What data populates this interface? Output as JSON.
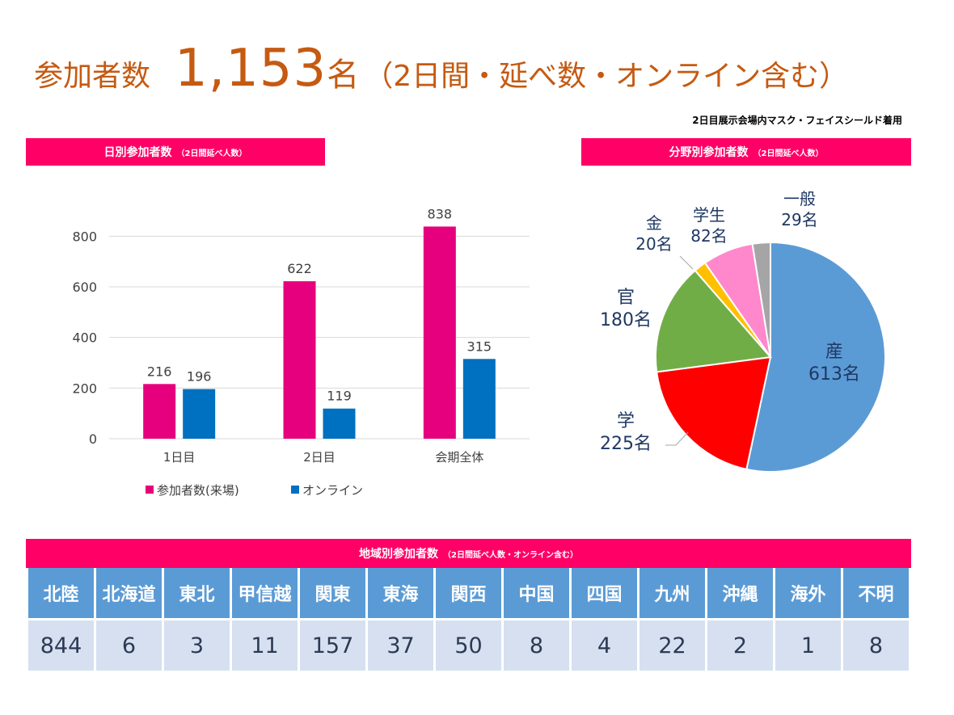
{
  "headline": {
    "label": "参加者数",
    "total": "1,153",
    "unit": "名",
    "note": "（2日間・延べ数・オンライン含む）"
  },
  "mask_note": "2日目展示会場内マスク・フェイスシールド着用",
  "daily_section": {
    "title": "日別参加者数",
    "subtitle": "（2日間延べ人数）"
  },
  "field_section": {
    "title": "分野別参加者数",
    "subtitle": "（2日間延べ人数）"
  },
  "region_section": {
    "title": "地域別参加者数",
    "subtitle": "（2日間延べ人数・オンライン含む）"
  },
  "colors": {
    "accent_band": "#ff0066",
    "headline": "#c55a11",
    "table_header": "#5b9bd5",
    "table_cell": "#d6e0f0"
  },
  "chart_data": [
    {
      "type": "bar",
      "categories": [
        "1日目",
        "2日目",
        "会期全体"
      ],
      "series": [
        {
          "name": "参加者数(来場)",
          "color": "#e6007e",
          "values": [
            216,
            622,
            838
          ]
        },
        {
          "name": "オンライン",
          "color": "#0070c0",
          "values": [
            196,
            119,
            315
          ]
        }
      ],
      "yticks": [
        "0",
        "200",
        "400",
        "600",
        "800"
      ],
      "ylim": [
        0,
        900
      ],
      "grid": true,
      "legend": "bottom"
    },
    {
      "type": "pie",
      "unit": "名",
      "slices": [
        {
          "label": "産",
          "value": 613,
          "value_label": "613名",
          "color": "#5b9bd5"
        },
        {
          "label": "学",
          "value": 225,
          "value_label": "225名",
          "color": "#ff0000"
        },
        {
          "label": "官",
          "value": 180,
          "value_label": "180名",
          "color": "#70ad47"
        },
        {
          "label": "金",
          "value": 20,
          "value_label": "20名",
          "color": "#ffc000"
        },
        {
          "label": "学生",
          "value": 82,
          "value_label": "82名",
          "color": "#ff88cc"
        },
        {
          "label": "一般",
          "value": 29,
          "value_label": "29名",
          "color": "#a5a5a5"
        }
      ]
    },
    {
      "type": "table",
      "columns": [
        "北陸",
        "北海道",
        "東北",
        "甲信越",
        "関東",
        "東海",
        "関西",
        "中国",
        "四国",
        "九州",
        "沖縄",
        "海外",
        "不明"
      ],
      "values": [
        "844",
        "6",
        "3",
        "11",
        "157",
        "37",
        "50",
        "8",
        "4",
        "22",
        "2",
        "1",
        "8"
      ]
    }
  ]
}
